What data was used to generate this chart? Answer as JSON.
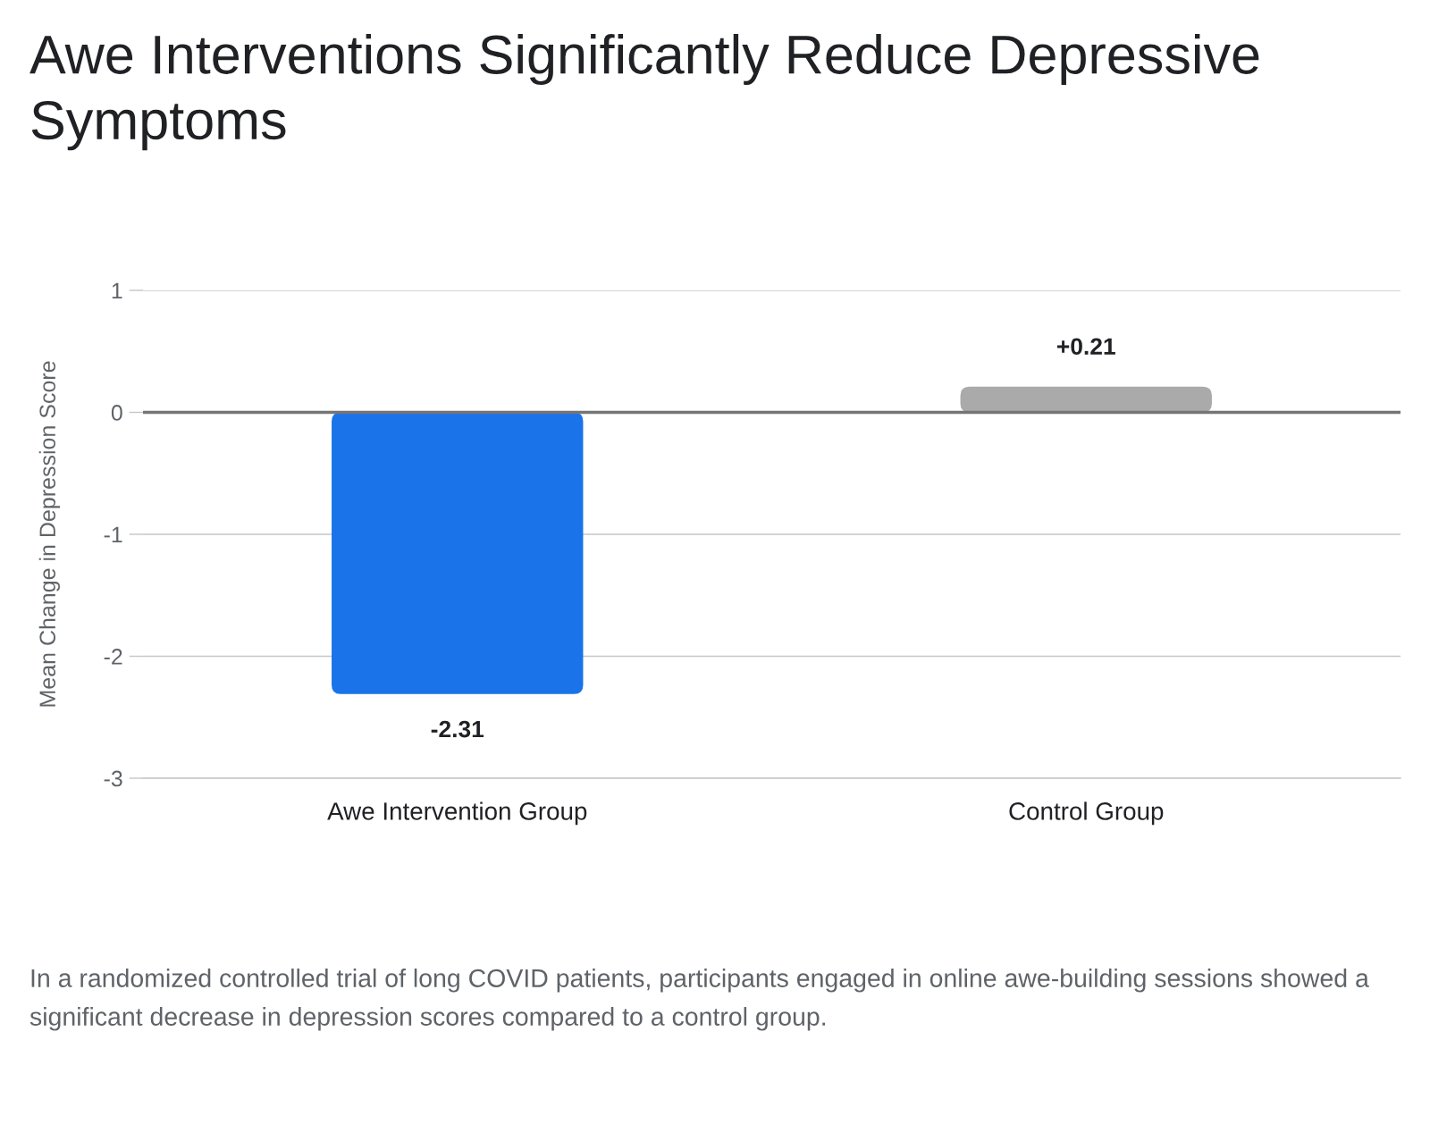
{
  "chart_data": {
    "type": "bar",
    "title": "Awe Interventions Significantly Reduce Depressive Symptoms",
    "ylabel": "Mean Change in Depression Score",
    "categories": [
      "Awe Intervention Group",
      "Control Group"
    ],
    "values": [
      -2.31,
      0.21
    ],
    "colors": [
      "#1a73e8",
      "#aaaaaa"
    ],
    "value_labels": [
      "-2.31",
      "+0.21"
    ],
    "ylim": [
      -3,
      1
    ],
    "yticks": [
      -3,
      -2,
      -1,
      0,
      1
    ],
    "grid": "y",
    "ref_lines": [
      {
        "axis": "y",
        "value": 0,
        "color": "#757575"
      }
    ],
    "annotations": [
      "In a randomized controlled trial of long COVID patients, participants engaged in online awe-building sessions showed a significant decrease in depression scores compared to a control group."
    ]
  }
}
